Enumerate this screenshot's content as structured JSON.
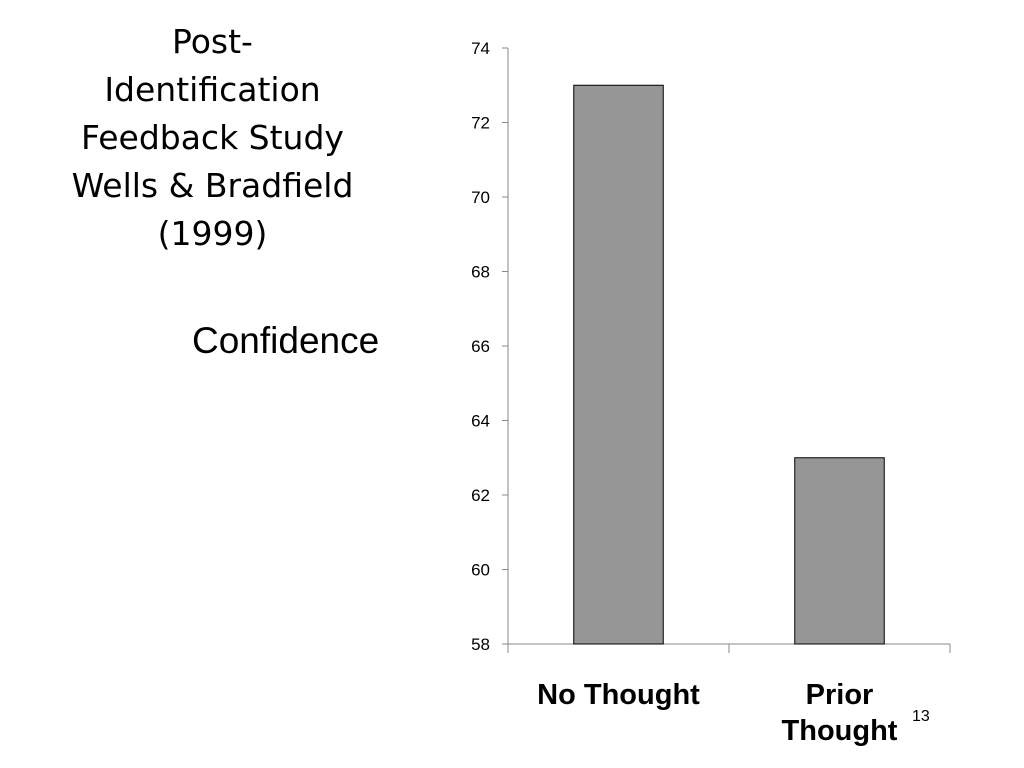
{
  "slide": {
    "title_lines": [
      "Post-",
      "Identification",
      "Feedback Study",
      "Wells & Bradfield",
      "(1999)"
    ],
    "page_number": "13"
  },
  "chart_data": {
    "type": "bar",
    "categories": [
      "No Thought",
      "Prior Thought"
    ],
    "values": [
      73,
      63
    ],
    "ylabel": "Confidence",
    "ylim": [
      58,
      74
    ],
    "yticks": [
      58,
      60,
      62,
      64,
      66,
      68,
      70,
      72,
      74
    ],
    "grid": false,
    "bar_color": "#969696",
    "bar_stroke": "#000000"
  }
}
